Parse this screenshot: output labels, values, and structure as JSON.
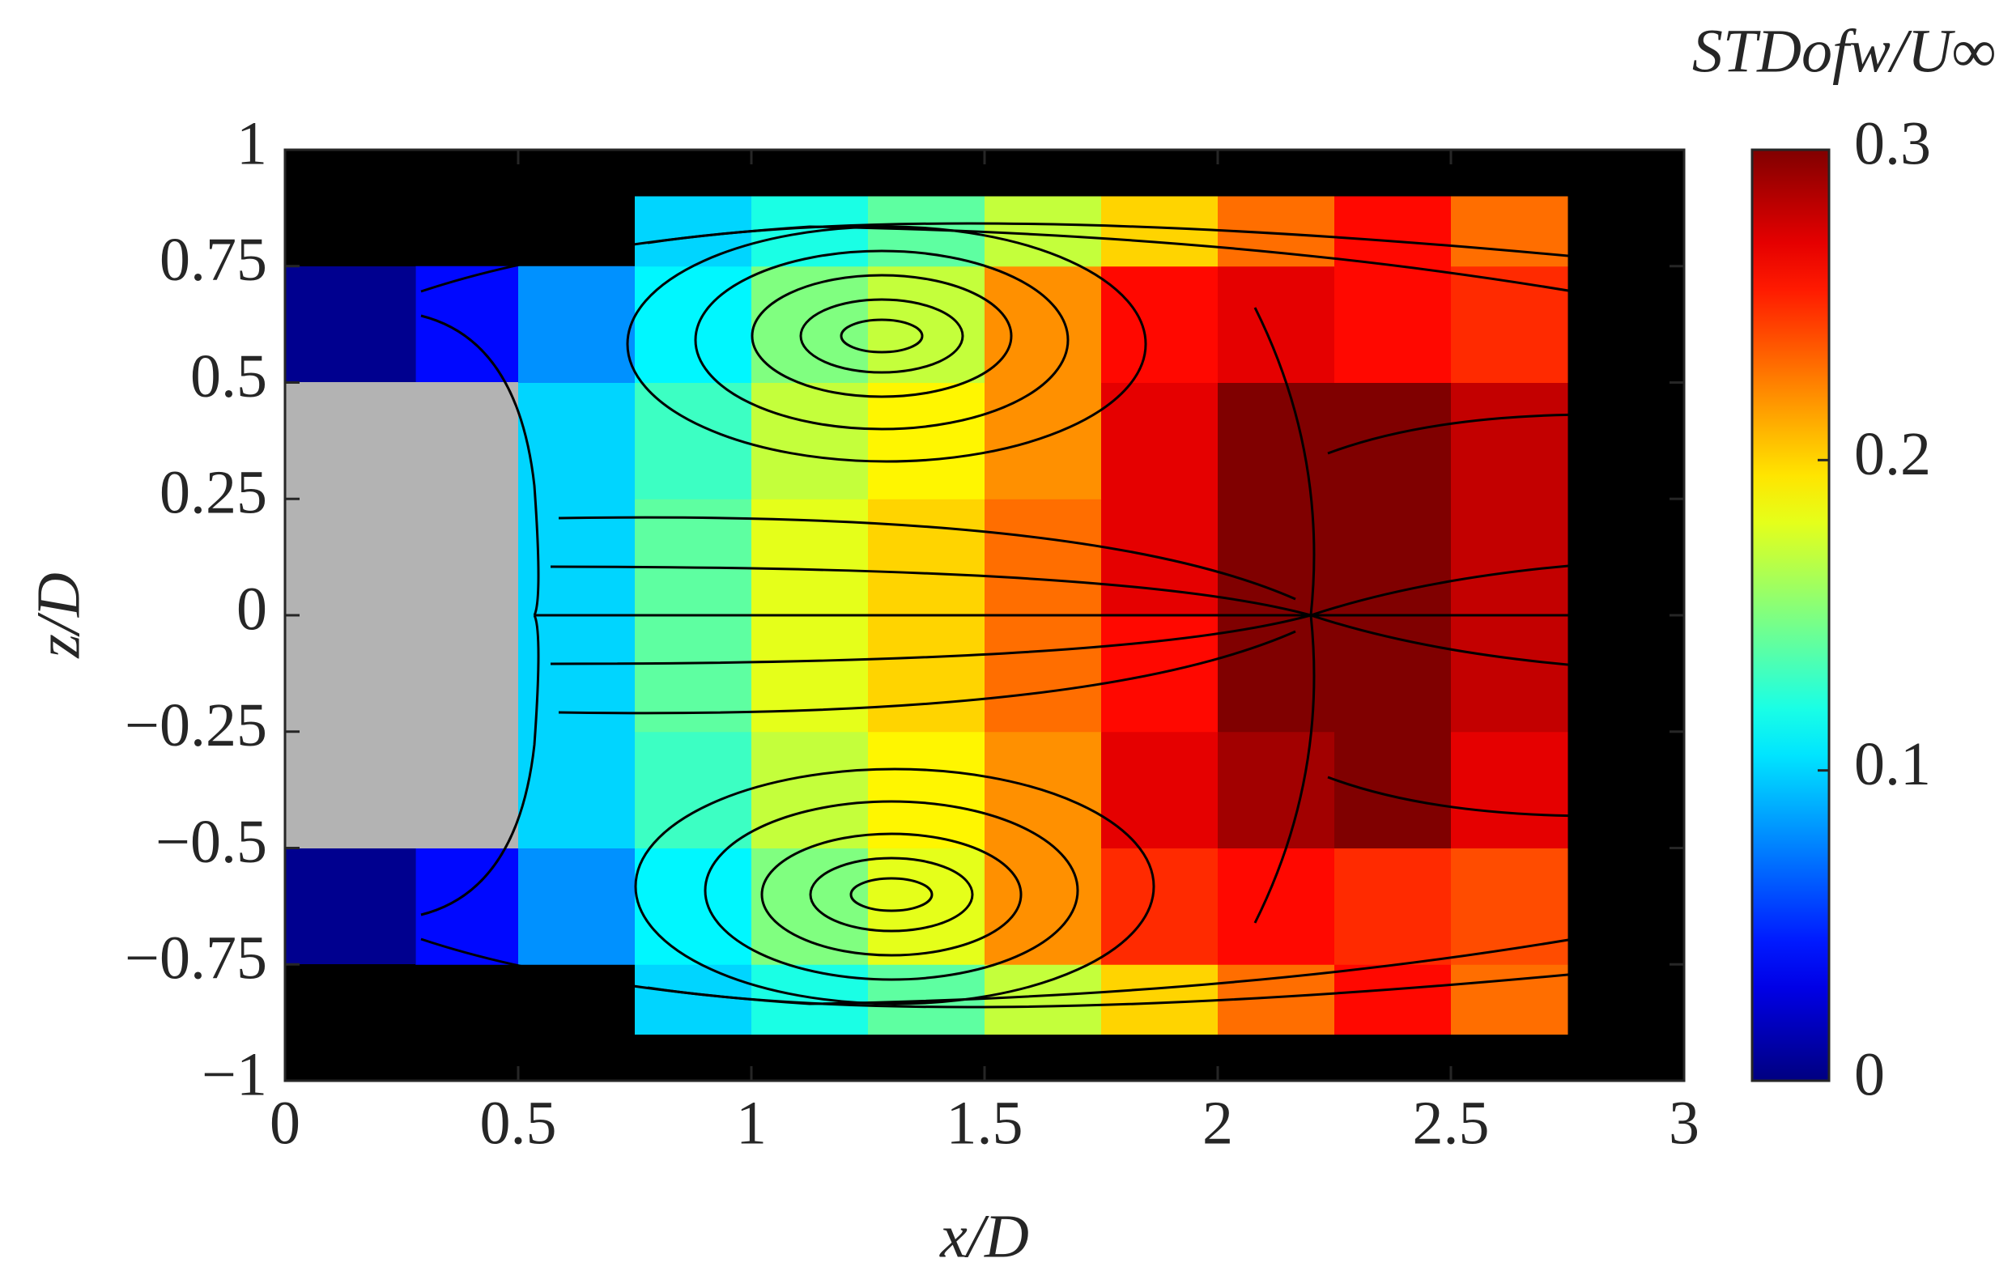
{
  "chart_data": {
    "type": "contour",
    "colorbar_title": "STDofw/U∞",
    "xlabel": "x/D",
    "ylabel": "z/D",
    "xlim": [
      0,
      3
    ],
    "ylim": [
      -1,
      1
    ],
    "xticks": [
      0,
      0.5,
      1,
      1.5,
      2,
      2.5,
      3
    ],
    "yticks": [
      {
        "value": -1,
        "label": "−1"
      },
      {
        "value": -0.75,
        "label": "−0.75"
      },
      {
        "value": -0.5,
        "label": "−0.5"
      },
      {
        "value": -0.25,
        "label": "−0.25"
      },
      0,
      0.25,
      0.5,
      0.75,
      1
    ],
    "colormap": "jet",
    "clim": [
      0,
      0.3
    ],
    "cticks": [
      0,
      0.1,
      0.2,
      0.3
    ],
    "x_edges": [
      0.28,
      0.5,
      0.75,
      1,
      1.25,
      1.5,
      1.75,
      2,
      2.25,
      2.5,
      2.75
    ],
    "z_edges": [
      -0.9,
      -0.75,
      -0.5,
      -0.25,
      0,
      0.25,
      0.5,
      0.75,
      0.9
    ],
    "values": [
      [
        null,
        null,
        0.1,
        0.12,
        0.14,
        0.17,
        0.2,
        0.23,
        0.26,
        0.23
      ],
      [
        0.04,
        0.08,
        0.11,
        0.15,
        0.18,
        0.22,
        0.25,
        0.26,
        0.25,
        0.24
      ],
      [
        null,
        0.1,
        0.13,
        0.17,
        0.19,
        0.22,
        0.27,
        0.29,
        0.3,
        0.27
      ],
      [
        null,
        0.1,
        0.14,
        0.18,
        0.2,
        0.23,
        0.26,
        0.3,
        0.3,
        0.28
      ],
      [
        null,
        0.1,
        0.14,
        0.18,
        0.2,
        0.23,
        0.27,
        0.3,
        0.3,
        0.28
      ],
      [
        null,
        0.1,
        0.13,
        0.17,
        0.19,
        0.22,
        0.27,
        0.3,
        0.3,
        0.28
      ],
      [
        0.04,
        0.08,
        0.11,
        0.15,
        0.17,
        0.22,
        0.26,
        0.27,
        0.26,
        0.25
      ],
      [
        null,
        null,
        0.1,
        0.12,
        0.14,
        0.17,
        0.2,
        0.23,
        0.26,
        0.23
      ]
    ]
  }
}
